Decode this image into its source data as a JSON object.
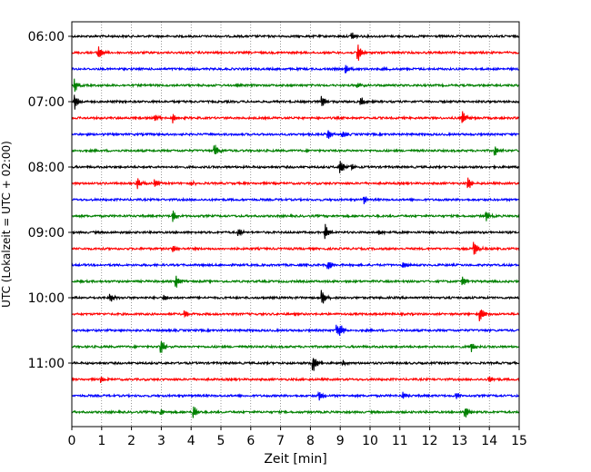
{
  "chart_data": {
    "type": "line",
    "title": "",
    "xlabel": "Zeit  [min]",
    "ylabel": "UTC (Lokalzeit = UTC + 02:00)",
    "xlim": [
      0,
      15
    ],
    "x_ticks": [
      0,
      1,
      2,
      3,
      4,
      5,
      6,
      7,
      8,
      9,
      10,
      11,
      12,
      13,
      14,
      15
    ],
    "grid": {
      "x": true,
      "y": false,
      "style": "dotted"
    },
    "y_ticks": [
      {
        "label": "06:00",
        "trace": 0
      },
      {
        "label": "07:00",
        "trace": 4
      },
      {
        "label": "08:00",
        "trace": 8
      },
      {
        "label": "09:00",
        "trace": 12
      },
      {
        "label": "10:00",
        "trace": 16
      },
      {
        "label": "11:00",
        "trace": 20
      }
    ],
    "color_cycle": [
      "#000000",
      "#ff0000",
      "#0000ff",
      "#008000"
    ],
    "traces": [
      {
        "start": "06:00",
        "events": [
          [
            9.4,
            0.5
          ]
        ]
      },
      {
        "start": "06:15",
        "events": [
          [
            0.9,
            0.8
          ],
          [
            9.6,
            1.1
          ]
        ]
      },
      {
        "start": "06:30",
        "events": [
          [
            9.2,
            0.6
          ],
          [
            10.5,
            0.3
          ]
        ]
      },
      {
        "start": "06:45",
        "events": [
          [
            0.1,
            0.8
          ],
          [
            9.6,
            0.3
          ]
        ]
      },
      {
        "start": "07:00",
        "events": [
          [
            0.1,
            0.9
          ],
          [
            8.4,
            0.8
          ],
          [
            9.7,
            0.5
          ]
        ]
      },
      {
        "start": "07:15",
        "events": [
          [
            2.8,
            0.4
          ],
          [
            3.4,
            0.6
          ],
          [
            13.1,
            0.9
          ]
        ]
      },
      {
        "start": "07:30",
        "events": [
          [
            8.6,
            0.6
          ],
          [
            9.1,
            0.3
          ]
        ]
      },
      {
        "start": "07:45",
        "events": [
          [
            4.8,
            0.8
          ],
          [
            14.2,
            0.7
          ]
        ]
      },
      {
        "start": "08:00",
        "events": [
          [
            9.0,
            0.9
          ],
          [
            9.4,
            0.4
          ]
        ]
      },
      {
        "start": "08:15",
        "events": [
          [
            2.2,
            0.7
          ],
          [
            2.8,
            0.5
          ],
          [
            4.0,
            0.4
          ],
          [
            13.3,
            0.8
          ]
        ]
      },
      {
        "start": "08:30",
        "events": [
          [
            9.8,
            0.6
          ]
        ]
      },
      {
        "start": "08:45",
        "events": [
          [
            3.4,
            0.7
          ],
          [
            13.9,
            0.7
          ]
        ]
      },
      {
        "start": "09:00",
        "events": [
          [
            5.6,
            0.4
          ],
          [
            8.5,
            1.0
          ],
          [
            10.3,
            0.4
          ]
        ]
      },
      {
        "start": "09:15",
        "events": [
          [
            3.4,
            0.4
          ],
          [
            13.5,
            0.9
          ]
        ]
      },
      {
        "start": "09:30",
        "events": [
          [
            8.6,
            0.6
          ],
          [
            11.1,
            0.4
          ]
        ]
      },
      {
        "start": "09:45",
        "events": [
          [
            3.5,
            0.8
          ],
          [
            13.1,
            0.7
          ]
        ]
      },
      {
        "start": "10:00",
        "events": [
          [
            1.3,
            0.5
          ],
          [
            3.1,
            0.3
          ],
          [
            8.4,
            0.9
          ]
        ]
      },
      {
        "start": "10:15",
        "events": [
          [
            3.8,
            0.4
          ],
          [
            13.7,
            0.9
          ]
        ]
      },
      {
        "start": "10:30",
        "events": [
          [
            8.9,
            0.6
          ],
          [
            9.0,
            0.5
          ]
        ]
      },
      {
        "start": "10:45",
        "events": [
          [
            3.0,
            0.9
          ],
          [
            13.4,
            0.6
          ]
        ]
      },
      {
        "start": "11:00",
        "events": [
          [
            8.1,
            1.0
          ],
          [
            9.1,
            0.4
          ]
        ]
      },
      {
        "start": "11:15",
        "events": [
          [
            1.0,
            0.4
          ],
          [
            14.0,
            0.4
          ]
        ]
      },
      {
        "start": "11:30",
        "events": [
          [
            8.3,
            0.6
          ],
          [
            11.1,
            0.4
          ],
          [
            12.9,
            0.4
          ]
        ]
      },
      {
        "start": "11:45",
        "events": [
          [
            3.0,
            0.4
          ],
          [
            4.1,
            0.7
          ],
          [
            13.2,
            0.7
          ]
        ]
      }
    ]
  }
}
